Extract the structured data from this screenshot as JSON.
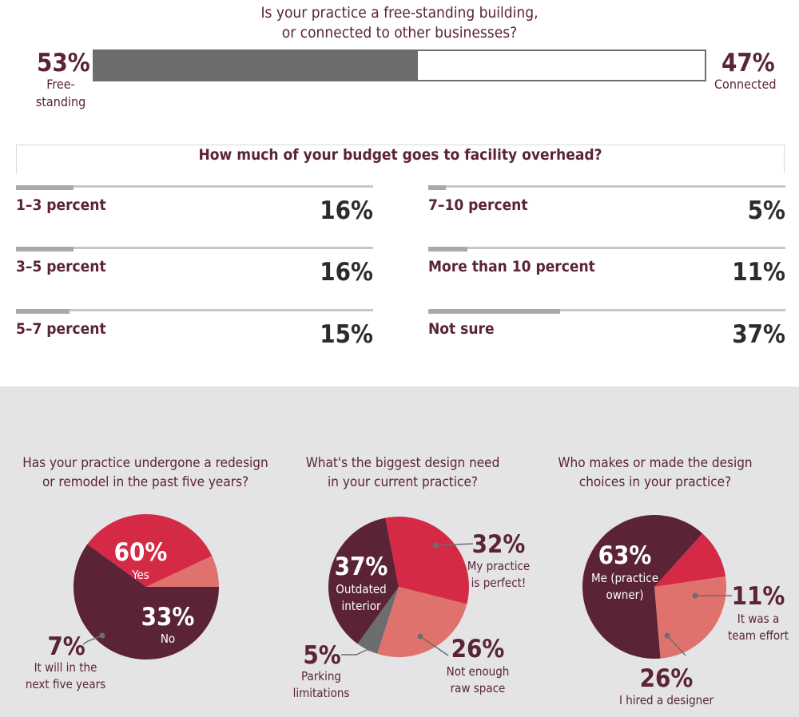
{
  "top_question": {
    "title_line1": "Is your practice a free-standing building,",
    "title_line2": "or connected to other businesses?",
    "left": {
      "pct": "53%",
      "label_line1": "Free-",
      "label_line2": "standing",
      "value": 53
    },
    "right": {
      "pct": "47%",
      "label": "Connected",
      "value": 47
    }
  },
  "budget": {
    "title": "How much of your budget goes to facility overhead?",
    "items": [
      {
        "label": "1–3 percent",
        "pct": "16%",
        "value": 16
      },
      {
        "label": "3–5 percent",
        "pct": "16%",
        "value": 16
      },
      {
        "label": "5–7 percent",
        "pct": "15%",
        "value": 15
      },
      {
        "label": "7–10 percent",
        "pct": "5%",
        "value": 5
      },
      {
        "label": "More than 10 percent",
        "pct": "11%",
        "value": 11
      },
      {
        "label": "Not sure",
        "pct": "37%",
        "value": 37
      }
    ]
  },
  "colors": {
    "maroon": "#5a2336",
    "red": "#d42a45",
    "salmon": "#e0726d",
    "gray": "#6d6d6f",
    "panel": "#e4e4e6"
  },
  "chart_data": [
    {
      "type": "bar",
      "title": "Is your practice a free-standing building, or connected to other businesses?",
      "categories": [
        "Free-standing",
        "Connected"
      ],
      "values": [
        53,
        47
      ]
    },
    {
      "type": "bar",
      "title": "How much of your budget goes to facility overhead?",
      "categories": [
        "1–3 percent",
        "3–5 percent",
        "5–7 percent",
        "7–10 percent",
        "More than 10 percent",
        "Not sure"
      ],
      "values": [
        16,
        16,
        15,
        5,
        11,
        37
      ]
    },
    {
      "type": "pie",
      "title_line1": "Has your practice undergone a redesign",
      "title_line2": "or remodel in the past five years?",
      "slices": [
        {
          "pct": "60%",
          "value": 60,
          "label_lines": [
            "Yes"
          ],
          "color": "#5a2336"
        },
        {
          "pct": "33%",
          "value": 33,
          "label_lines": [
            "No"
          ],
          "color": "#d42a45"
        },
        {
          "pct": "7%",
          "value": 7,
          "label_lines": [
            "It will in the",
            "next five years"
          ],
          "color": "#e0726d"
        }
      ]
    },
    {
      "type": "pie",
      "title_line1": "What's the biggest design need",
      "title_line2": "in your current practice?",
      "slices": [
        {
          "pct": "32%",
          "value": 32,
          "label_lines": [
            "My practice",
            "is perfect!"
          ],
          "color": "#d42a45"
        },
        {
          "pct": "26%",
          "value": 26,
          "label_lines": [
            "Not enough",
            "raw space"
          ],
          "color": "#e0726d"
        },
        {
          "pct": "5%",
          "value": 5,
          "label_lines": [
            "Parking",
            "limitations"
          ],
          "color": "#6d6d6f"
        },
        {
          "pct": "37%",
          "value": 37,
          "label_lines": [
            "Outdated",
            "interior"
          ],
          "color": "#5a2336"
        }
      ]
    },
    {
      "type": "pie",
      "title_line1": "Who makes or made the design",
      "title_line2": "choices in your practice?",
      "slices": [
        {
          "pct": "11%",
          "value": 11,
          "label_lines": [
            "It was a",
            "team effort"
          ],
          "color": "#d42a45"
        },
        {
          "pct": "26%",
          "value": 26,
          "label_lines": [
            "I hired a designer"
          ],
          "color": "#e0726d"
        },
        {
          "pct": "63%",
          "value": 63,
          "label_lines": [
            "Me (practice",
            "owner)"
          ],
          "color": "#5a2336"
        }
      ]
    }
  ]
}
